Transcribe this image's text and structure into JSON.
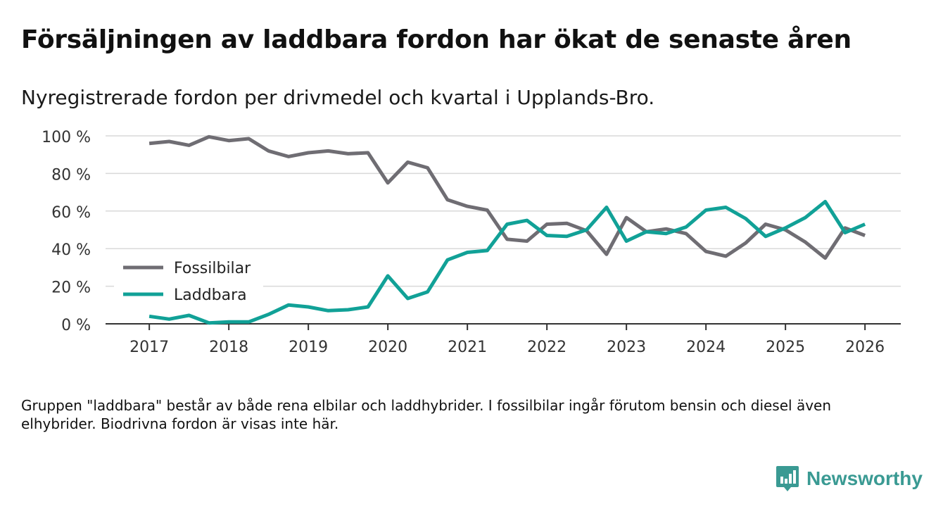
{
  "header": {
    "title": "Försäljningen av laddbara fordon har ökat de senaste åren",
    "subtitle": "Nyregistrerade fordon per drivmedel och kvartal i Upplands-Bro."
  },
  "footnote": "Gruppen \"laddbara\" består av både rena elbilar och laddhybrider. I fossilbilar ingår förutom bensin och diesel även elhybrider. Biodrivna fordon är visas inte här.",
  "brand": {
    "name": "Newsworthy",
    "icon": "newsworthy-logo-icon",
    "color": "#3a9a93"
  },
  "chart_data": {
    "type": "line",
    "title": "Försäljningen av laddbara fordon har ökat de senaste åren",
    "subtitle": "Nyregistrerade fordon per drivmedel och kvartal i Upplands-Bro.",
    "xlabel": "",
    "ylabel": "",
    "x": [
      2017,
      2017.25,
      2017.5,
      2017.75,
      2018,
      2018.25,
      2018.5,
      2018.75,
      2019,
      2019.25,
      2019.5,
      2019.75,
      2020,
      2020.25,
      2020.5,
      2020.75,
      2021,
      2021.25,
      2021.5,
      2021.75,
      2022,
      2022.25,
      2022.5,
      2022.75,
      2023,
      2023.25,
      2023.5,
      2023.75,
      2024,
      2024.25,
      2024.5,
      2024.75,
      2025,
      2025.25,
      2025.5,
      2025.75,
      2026
    ],
    "xlim": [
      2016.45,
      2026.45
    ],
    "ylim": [
      0,
      100
    ],
    "x_ticks": [
      2017,
      2018,
      2019,
      2020,
      2021,
      2022,
      2023,
      2024,
      2025,
      2026
    ],
    "x_tick_labels": [
      "2017",
      "2018",
      "2019",
      "2020",
      "2021",
      "2022",
      "2023",
      "2024",
      "2025",
      "2026"
    ],
    "y_ticks": [
      0,
      20,
      40,
      60,
      80,
      100
    ],
    "y_tick_labels": [
      "0 %",
      "20 %",
      "40 %",
      "60 %",
      "80 %",
      "100 %"
    ],
    "grid": true,
    "legend_position": "bottom-left",
    "series": [
      {
        "name": "Fossilbilar",
        "color": "#6f6d73",
        "values": [
          96,
          97,
          95,
          99.5,
          97.5,
          98.5,
          92,
          89,
          91,
          92,
          90.5,
          91,
          75,
          86,
          83,
          66,
          62.5,
          60.5,
          45,
          44,
          53,
          53.5,
          49.5,
          37,
          56.5,
          49,
          50.5,
          48,
          38.5,
          36,
          43,
          53,
          50,
          43.5,
          35,
          51,
          47
        ]
      },
      {
        "name": "Laddbara",
        "color": "#11a197",
        "values": [
          4,
          2.5,
          4.5,
          0.5,
          1,
          1,
          5,
          10,
          9,
          7,
          7.5,
          9,
          25.5,
          13.5,
          17,
          34,
          38,
          39,
          53,
          55,
          47,
          46.5,
          50,
          62,
          44,
          49,
          48,
          51.5,
          60.5,
          62,
          56,
          46.5,
          51,
          56.5,
          65,
          48.5,
          53
        ]
      }
    ]
  }
}
